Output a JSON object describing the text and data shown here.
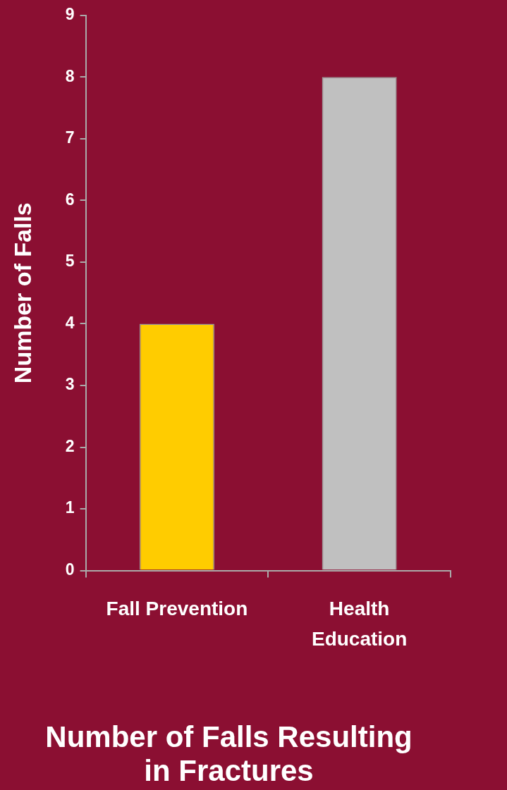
{
  "chart_data": {
    "type": "bar",
    "title": "Number of Falls Resulting\nin Fractures",
    "ylabel": "Number of Falls",
    "categories": [
      "Fall Prevention",
      "Health\nEducation"
    ],
    "values": [
      4,
      8
    ],
    "colors": [
      "#ffcc00",
      "#c0c0c0"
    ],
    "ylim": [
      0,
      9
    ],
    "yticks": [
      0,
      1,
      2,
      3,
      4,
      5,
      6,
      7,
      8,
      9
    ],
    "grid": false,
    "legend": false
  }
}
